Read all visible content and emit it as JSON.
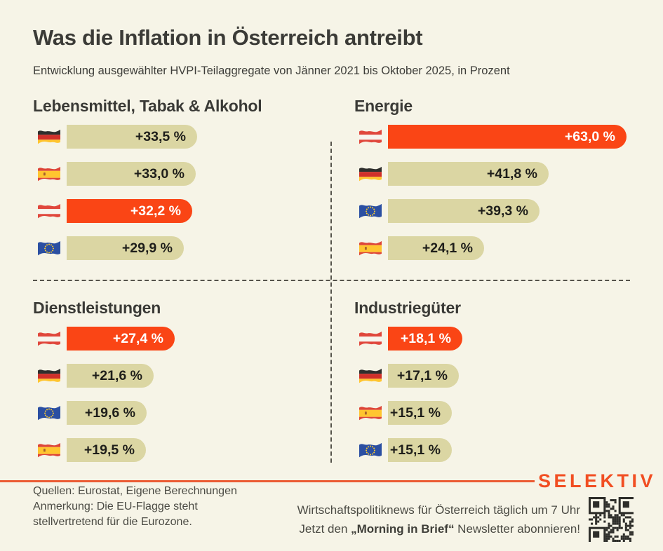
{
  "title": "Was die Inflation in Österreich antreibt",
  "subtitle": "Entwicklung ausgewählter HVPI-Teilaggregate von Jänner 2021 bis Oktober 2025, in Prozent",
  "colors": {
    "background": "#F6F4E7",
    "bar_default": "#DBD6A3",
    "bar_highlight": "#FA4515",
    "accent_rule": "#EB5B33",
    "brand_orange": "#F14E22",
    "text_dark": "#3A3A36"
  },
  "chart_data": [
    {
      "type": "bar",
      "title": "Lebensmittel, Tabak & Alkohol",
      "unit": "Prozent",
      "bars": [
        {
          "category": "Deutschland",
          "flag": "de",
          "value": 33.5,
          "label": "+33,5 %",
          "highlight": false
        },
        {
          "category": "Spanien",
          "flag": "es",
          "value": 33.0,
          "label": "+33,0 %",
          "highlight": false
        },
        {
          "category": "Österreich",
          "flag": "at",
          "value": 32.2,
          "label": "+32,2 %",
          "highlight": true
        },
        {
          "category": "EU",
          "flag": "eu",
          "value": 29.9,
          "label": "+29,9 %",
          "highlight": false
        }
      ]
    },
    {
      "type": "bar",
      "title": "Energie",
      "unit": "Prozent",
      "bars": [
        {
          "category": "Österreich",
          "flag": "at",
          "value": 63.0,
          "label": "+63,0 %",
          "highlight": true
        },
        {
          "category": "Deutschland",
          "flag": "de",
          "value": 41.8,
          "label": "+41,8 %",
          "highlight": false
        },
        {
          "category": "EU",
          "flag": "eu",
          "value": 39.3,
          "label": "+39,3 %",
          "highlight": false
        },
        {
          "category": "Spanien",
          "flag": "es",
          "value": 24.1,
          "label": "+24,1 %",
          "highlight": false
        }
      ]
    },
    {
      "type": "bar",
      "title": "Dienstleistungen",
      "unit": "Prozent",
      "bars": [
        {
          "category": "Österreich",
          "flag": "at",
          "value": 27.4,
          "label": "+27,4 %",
          "highlight": true
        },
        {
          "category": "Deutschland",
          "flag": "de",
          "value": 21.6,
          "label": "+21,6 %",
          "highlight": false
        },
        {
          "category": "EU",
          "flag": "eu",
          "value": 19.6,
          "label": "+19,6 %",
          "highlight": false
        },
        {
          "category": "Spanien",
          "flag": "es",
          "value": 19.5,
          "label": "+19,5 %",
          "highlight": false
        }
      ]
    },
    {
      "type": "bar",
      "title": "Industriegüter",
      "unit": "Prozent",
      "bars": [
        {
          "category": "Österreich",
          "flag": "at",
          "value": 18.1,
          "label": "+18,1 %",
          "highlight": true
        },
        {
          "category": "Deutschland",
          "flag": "de",
          "value": 17.1,
          "label": "+17,1 %",
          "highlight": false
        },
        {
          "category": "Spanien",
          "flag": "es",
          "value": 15.1,
          "label": "+15,1 %",
          "highlight": false
        },
        {
          "category": "EU",
          "flag": "eu",
          "value": 15.1,
          "label": "+15,1 %",
          "highlight": false
        }
      ]
    }
  ],
  "footer": {
    "source_lines": [
      "Quellen: Eurostat, Eigene Berechnungen",
      "Anmerkung: Die EU-Flagge steht",
      "stellvertretend für die Eurozone."
    ],
    "newsletter_line1": "Wirtschaftspolitiknews für Österreich täglich um 7 Uhr",
    "cta_prefix": "Jetzt den ",
    "cta_bold": "„Morning in Brief“",
    "cta_suffix": " Newsletter abonnieren!",
    "brand": "SELEKTIV"
  }
}
